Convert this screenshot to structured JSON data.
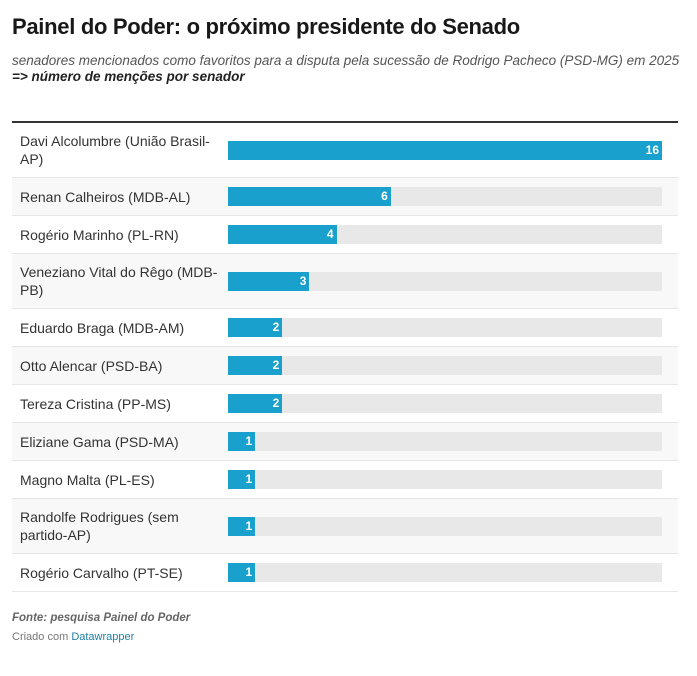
{
  "header": {
    "title": "Painel do Poder: o próximo presidente do Senado",
    "subtitle": "senadores mencionados como favoritos para a disputa pela sucessão de Rodrigo Pacheco (PSD-MG) em 2025",
    "subtitle2": "=> número de menções por senador"
  },
  "chart_data": {
    "type": "bar",
    "orientation": "horizontal",
    "categories": [
      "Davi Alcolumbre (União Brasil-AP)",
      "Renan Calheiros (MDB-AL)",
      "Rogério Marinho (PL-RN)",
      "Veneziano Vital do Rêgo (MDB-PB)",
      "Eduardo Braga (MDB-AM)",
      "Otto Alencar (PSD-BA)",
      "Tereza Cristina (PP-MS)",
      "Eliziane Gama (PSD-MA)",
      "Magno Malta (PL-ES)",
      "Randolfe Rodrigues (sem partido-AP)",
      "Rogério Carvalho (PT-SE)"
    ],
    "values": [
      16,
      6,
      4,
      3,
      2,
      2,
      2,
      1,
      1,
      1,
      1
    ],
    "xlim": [
      0,
      16
    ],
    "color": "#1aa0cc",
    "track_color": "#e8e8e8"
  },
  "footer": {
    "source": "Fonte: pesquisa Painel do Poder",
    "credit_prefix": "Criado com",
    "credit_link": "Datawrapper"
  }
}
